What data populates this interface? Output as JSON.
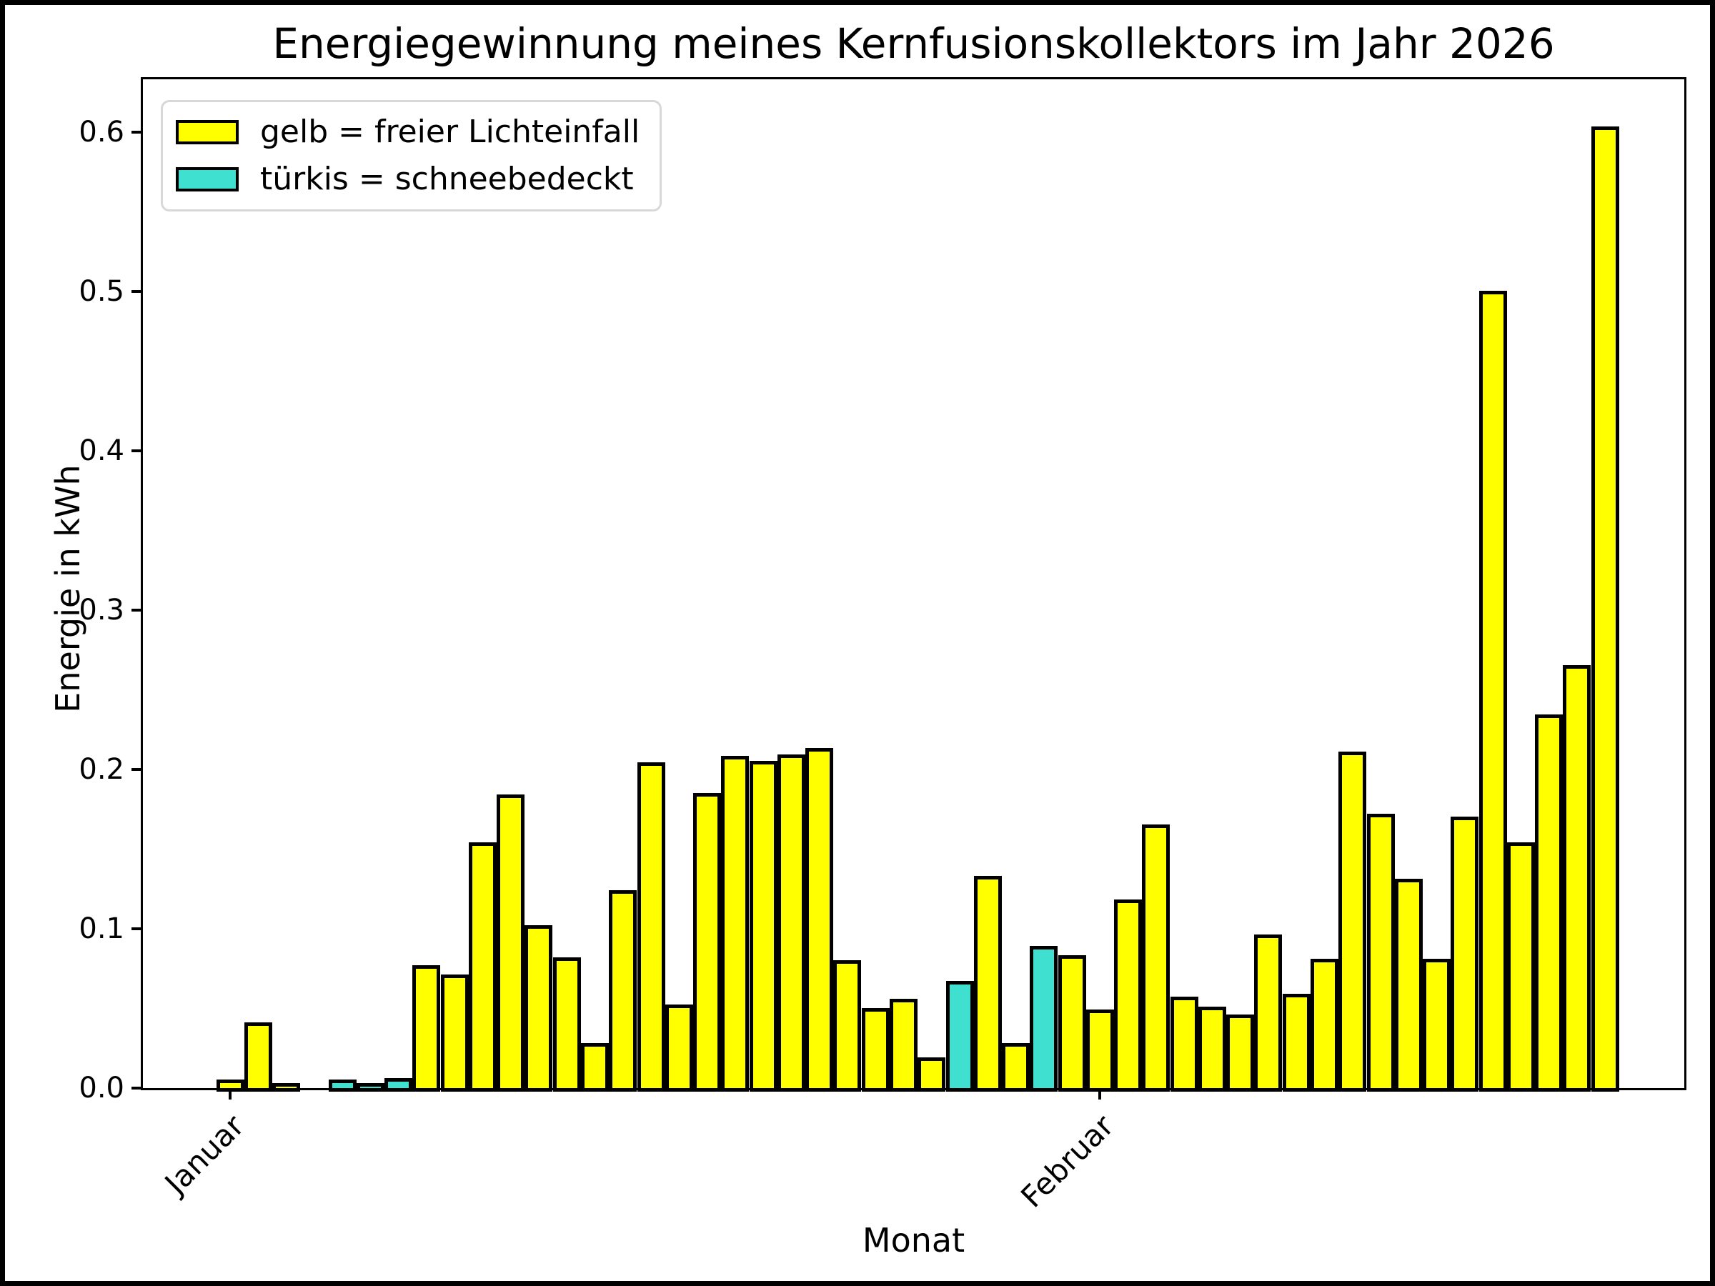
{
  "figure": {
    "title": "Energiegewinnung meines Kernfusionskollektors im Jahr 2026"
  },
  "chart_data": {
    "type": "bar",
    "title": "Energiegewinnung meines Kernfusionskollektors im Jahr 2026",
    "xlabel": "Monat",
    "ylabel": "Energie in kWh",
    "ylim": [
      0,
      0.633
    ],
    "grid": false,
    "legend_position": "upper left",
    "legend": [
      {
        "label": "gelb = freier Lichteinfall",
        "color": "#ffff00"
      },
      {
        "label": "türkis = schneebedeckt",
        "color": "#40e0d0"
      }
    ],
    "colors": {
      "free_light": "#ffff00",
      "snow_covered": "#40e0d0",
      "edge": "#000000"
    },
    "yticks": [
      0.0,
      0.1,
      0.2,
      0.3,
      0.4,
      0.5,
      0.6
    ],
    "ytick_labels": [
      "0.0",
      "0.1",
      "0.2",
      "0.3",
      "0.4",
      "0.5",
      "0.6"
    ],
    "xticks": [
      {
        "label": "Januar",
        "day_index": 1
      },
      {
        "label": "Februar",
        "day_index": 32
      }
    ],
    "days": [
      {
        "month": "Januar",
        "day": 1,
        "value": 0.003,
        "snow": false
      },
      {
        "month": "Januar",
        "day": 2,
        "value": 0.039,
        "snow": false
      },
      {
        "month": "Januar",
        "day": 3,
        "value": 0.001,
        "snow": false
      },
      {
        "month": "Januar",
        "day": 4,
        "value": 0.0,
        "snow": false
      },
      {
        "month": "Januar",
        "day": 5,
        "value": 0.003,
        "snow": true
      },
      {
        "month": "Januar",
        "day": 6,
        "value": 0.001,
        "snow": true
      },
      {
        "month": "Januar",
        "day": 7,
        "value": 0.004,
        "snow": true
      },
      {
        "month": "Januar",
        "day": 8,
        "value": 0.075,
        "snow": false
      },
      {
        "month": "Januar",
        "day": 9,
        "value": 0.069,
        "snow": false
      },
      {
        "month": "Januar",
        "day": 10,
        "value": 0.152,
        "snow": false
      },
      {
        "month": "Januar",
        "day": 11,
        "value": 0.182,
        "snow": false
      },
      {
        "month": "Januar",
        "day": 12,
        "value": 0.1,
        "snow": false
      },
      {
        "month": "Januar",
        "day": 13,
        "value": 0.08,
        "snow": false
      },
      {
        "month": "Januar",
        "day": 14,
        "value": 0.026,
        "snow": false
      },
      {
        "month": "Januar",
        "day": 15,
        "value": 0.122,
        "snow": false
      },
      {
        "month": "Januar",
        "day": 16,
        "value": 0.202,
        "snow": false
      },
      {
        "month": "Januar",
        "day": 17,
        "value": 0.05,
        "snow": false
      },
      {
        "month": "Januar",
        "day": 18,
        "value": 0.183,
        "snow": false
      },
      {
        "month": "Januar",
        "day": 19,
        "value": 0.206,
        "snow": false
      },
      {
        "month": "Januar",
        "day": 20,
        "value": 0.203,
        "snow": false
      },
      {
        "month": "Januar",
        "day": 21,
        "value": 0.207,
        "snow": false
      },
      {
        "month": "Januar",
        "day": 22,
        "value": 0.211,
        "snow": false
      },
      {
        "month": "Januar",
        "day": 23,
        "value": 0.078,
        "snow": false
      },
      {
        "month": "Januar",
        "day": 24,
        "value": 0.048,
        "snow": false
      },
      {
        "month": "Januar",
        "day": 25,
        "value": 0.054,
        "snow": false
      },
      {
        "month": "Januar",
        "day": 26,
        "value": 0.017,
        "snow": false
      },
      {
        "month": "Januar",
        "day": 27,
        "value": 0.065,
        "snow": true
      },
      {
        "month": "Januar",
        "day": 28,
        "value": 0.131,
        "snow": false
      },
      {
        "month": "Januar",
        "day": 29,
        "value": 0.026,
        "snow": false
      },
      {
        "month": "Januar",
        "day": 30,
        "value": 0.087,
        "snow": true
      },
      {
        "month": "Januar",
        "day": 31,
        "value": 0.081,
        "snow": false
      },
      {
        "month": "Februar",
        "day": 1,
        "value": 0.047,
        "snow": false
      },
      {
        "month": "Februar",
        "day": 2,
        "value": 0.116,
        "snow": false
      },
      {
        "month": "Februar",
        "day": 3,
        "value": 0.163,
        "snow": false
      },
      {
        "month": "Februar",
        "day": 4,
        "value": 0.055,
        "snow": false
      },
      {
        "month": "Februar",
        "day": 5,
        "value": 0.049,
        "snow": false
      },
      {
        "month": "Februar",
        "day": 6,
        "value": 0.044,
        "snow": false
      },
      {
        "month": "Februar",
        "day": 7,
        "value": 0.094,
        "snow": false
      },
      {
        "month": "Februar",
        "day": 8,
        "value": 0.057,
        "snow": false
      },
      {
        "month": "Februar",
        "day": 9,
        "value": 0.079,
        "snow": false
      },
      {
        "month": "Februar",
        "day": 10,
        "value": 0.209,
        "snow": false
      },
      {
        "month": "Februar",
        "day": 11,
        "value": 0.17,
        "snow": false
      },
      {
        "month": "Februar",
        "day": 12,
        "value": 0.129,
        "snow": false
      },
      {
        "month": "Februar",
        "day": 13,
        "value": 0.079,
        "snow": false
      },
      {
        "month": "Februar",
        "day": 14,
        "value": 0.168,
        "snow": false
      },
      {
        "month": "Februar",
        "day": 15,
        "value": 0.498,
        "snow": false
      },
      {
        "month": "Februar",
        "day": 16,
        "value": 0.152,
        "snow": false
      },
      {
        "month": "Februar",
        "day": 17,
        "value": 0.232,
        "snow": false
      },
      {
        "month": "Februar",
        "day": 18,
        "value": 0.263,
        "snow": false
      },
      {
        "month": "Februar",
        "day": 19,
        "value": 0.601,
        "snow": false
      }
    ]
  }
}
